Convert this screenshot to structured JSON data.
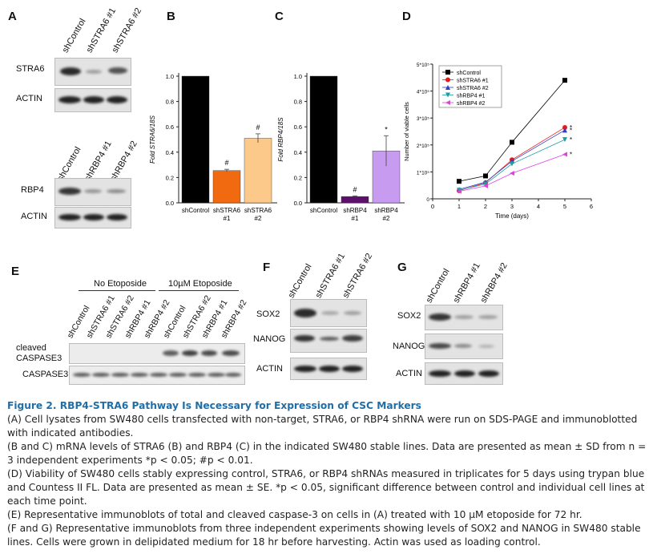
{
  "panels": {
    "A": {
      "label": "A",
      "top_lanes": [
        "shControl",
        "shSTRA6 #1",
        "shSTRA6 #2"
      ],
      "top_rows": [
        "STRA6",
        "ACTIN"
      ],
      "bottom_lanes": [
        "shControl",
        "shRBP4 #1",
        "shRBP4 #2"
      ],
      "bottom_rows": [
        "RBP4",
        "ACTIN"
      ]
    },
    "B": {
      "label": "B",
      "ylabel": "Fold STRA6/18S",
      "categories": [
        "shControl",
        "shSTRA6\n#1",
        "shSTRA6\n#2"
      ],
      "yticks": [
        "0.0",
        "0.2",
        "0.4",
        "0.6",
        "0.8",
        "1.0"
      ],
      "sig": [
        "",
        "#",
        "#"
      ]
    },
    "C": {
      "label": "C",
      "ylabel": "Fold RBP4/18S",
      "categories": [
        "shControl",
        "shRBP4\n#1",
        "shRBP4\n#2"
      ],
      "yticks": [
        "0.0",
        "0.2",
        "0.4",
        "0.6",
        "0.8",
        "1.0"
      ],
      "sig": [
        "",
        "#",
        "*"
      ]
    },
    "D": {
      "label": "D",
      "ylabel": "Number of viable cells",
      "xlabel": "Time (days)",
      "xticks": [
        "0",
        "1",
        "2",
        "3",
        "4",
        "5",
        "6"
      ],
      "yticks": [
        "0",
        "1*10⁵",
        "2*10⁵",
        "3*10⁵",
        "4*10⁵",
        "5*10⁵"
      ],
      "legend": [
        "shControl",
        "shSTRA6 #1",
        "shSTRA6 #2",
        "shRBP4 #1",
        "shRBP4 #2"
      ]
    },
    "E": {
      "label": "E",
      "group1": "No Etoposide",
      "group2": "10µM Etoposide",
      "lanes": [
        "shControl",
        "shSTRA6 #1",
        "shSTRA6 #2",
        "shRBP4 #1",
        "shRBP4 #2",
        "shControl",
        "shSTRA6 #2",
        "shRBP4 #1",
        "shRBP4 #2"
      ],
      "rows": [
        "cleaved\nCASPASE3",
        "CASPASE3"
      ]
    },
    "F": {
      "label": "F",
      "lanes": [
        "shControl",
        "shSTRA6 #1",
        "shSTRA6 #2"
      ],
      "rows": [
        "SOX2",
        "NANOG",
        "ACTIN"
      ]
    },
    "G": {
      "label": "G",
      "lanes": [
        "shControl",
        "shRBP4 #1",
        "shRBP4 #2"
      ],
      "rows": [
        "SOX2",
        "NANOG",
        "ACTIN"
      ]
    }
  },
  "chart_data": [
    {
      "type": "bar",
      "title": "",
      "ylabel": "Fold STRA6/18S",
      "categories": [
        "shControl",
        "shSTRA6 #1",
        "shSTRA6 #2"
      ],
      "values": [
        1.0,
        0.255,
        0.51
      ],
      "errors": [
        0,
        0.01,
        0.035
      ],
      "colors": [
        "#000000",
        "#f26a10",
        "#fcc98a"
      ],
      "ylim": [
        0,
        1.0
      ]
    },
    {
      "type": "bar",
      "title": "",
      "ylabel": "Fold RBP4/18S",
      "categories": [
        "shControl",
        "shRBP4 #1",
        "shRBP4 #2"
      ],
      "values": [
        1.0,
        0.05,
        0.41
      ],
      "errors": [
        0,
        0.005,
        0.12
      ],
      "colors": [
        "#000000",
        "#5c0f6b",
        "#c79cf0"
      ],
      "ylim": [
        0,
        1.0
      ]
    },
    {
      "type": "line",
      "title": "",
      "xlabel": "Time (days)",
      "ylabel": "Number of viable cells",
      "x": [
        1,
        2,
        3,
        5
      ],
      "xlim": [
        0,
        6
      ],
      "ylim": [
        0,
        500000
      ],
      "series": [
        {
          "name": "shControl",
          "color": "#000000",
          "marker": "square",
          "values": [
            65000,
            85000,
            210000,
            440000
          ],
          "sig": ""
        },
        {
          "name": "shSTRA6 #1",
          "color": "#e8191c",
          "marker": "circle",
          "values": [
            30000,
            60000,
            145000,
            265000
          ],
          "sig": "*"
        },
        {
          "name": "shSTRA6 #2",
          "color": "#2c3fc7",
          "marker": "triangle-up",
          "values": [
            35000,
            62000,
            140000,
            255000
          ],
          "sig": "*"
        },
        {
          "name": "shRBP4 #1",
          "color": "#1a9e9e",
          "marker": "triangle-down",
          "values": [
            32000,
            55000,
            130000,
            220000
          ],
          "sig": "*"
        },
        {
          "name": "shRBP4 #2",
          "color": "#e040e0",
          "marker": "triangle-left",
          "values": [
            28000,
            48000,
            95000,
            165000
          ],
          "sig": "*"
        }
      ]
    }
  ],
  "caption": {
    "title": "Figure 2.  RBP4-STRA6 Pathway Is Necessary for Expression of CSC Markers",
    "p1": "(A) Cell lysates from SW480 cells transfected with non-target, STRA6, or RBP4 shRNA were run on SDS-PAGE and immunoblotted with indicated antibodies.",
    "p2": "(B and C) mRNA levels of STRA6 (B) and RBP4 (C) in the indicated SW480 stable lines. Data are presented as mean ± SD from n = 3 independent experiments *p < 0.05; #p < 0.01.",
    "p3": "(D) Viability of SW480 cells stably expressing control, STRA6, or RBP4 shRNAs measured in triplicates for 5 days using trypan blue and Countess II FL. Data are presented as mean ± SE. *p < 0.05, significant difference between control and individual cell lines at each time point.",
    "p4": "(E) Representative immunoblots of total and cleaved caspase-3 on cells in (A) treated with 10 µM etoposide for 72 hr.",
    "p5": "(F and G) Representative immunoblots from three independent experiments showing levels of SOX2 and NANOG in SW480 stable lines. Cells were grown in delipidated medium for 18 hr before harvesting. Actin was used as loading control."
  }
}
